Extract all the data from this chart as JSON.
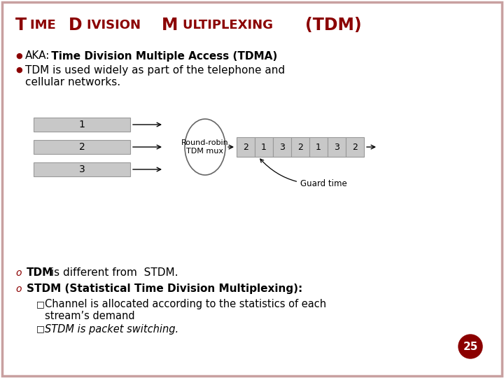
{
  "bg_color": "#ffffff",
  "border_color": "#c8a0a0",
  "title_color": "#8b0000",
  "text_color": "#000000",
  "bullet_color": "#8b0000",
  "slide_number": "25",
  "slide_number_bg": "#8b0000",
  "slide_number_color": "#ffffff",
  "diagram_input_labels": [
    "1",
    "2",
    "3"
  ],
  "diagram_output_labels": [
    "2",
    "1",
    "3",
    "2",
    "1",
    "3",
    "2"
  ],
  "mux_label": "Round-robin\nTDM mux",
  "guard_label": "Guard time",
  "input_box_color": "#c8c8c8",
  "output_box_color": "#c8c8c8"
}
